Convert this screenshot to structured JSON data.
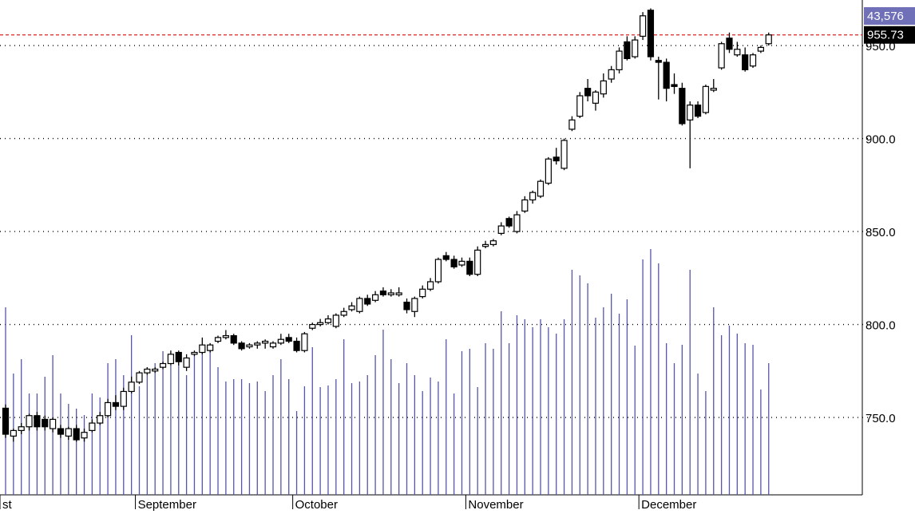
{
  "chart_data": {
    "type": "candlestick",
    "ylim": [
      708.4,
      974.5
    ],
    "yticks": [
      {
        "value": 750,
        "label": "750.0"
      },
      {
        "value": 800,
        "label": "800.0"
      },
      {
        "value": 850,
        "label": "850.0"
      },
      {
        "value": 900,
        "label": "900.0"
      },
      {
        "value": 950,
        "label": "950.0"
      }
    ],
    "grid": true,
    "xlim": [
      -0.71,
      108.9
    ],
    "xticks": [
      {
        "value": -0.71,
        "label": "st"
      },
      {
        "value": 16.5,
        "label": "September"
      },
      {
        "value": 36.5,
        "label": "October"
      },
      {
        "value": 58.5,
        "label": "November"
      },
      {
        "value": 80.5,
        "label": "December"
      }
    ],
    "y2lim": [
      0,
      163700
    ],
    "y2ticks": [
      {
        "value": 43576,
        "label": "43,576"
      }
    ],
    "reference_line": 955.73,
    "reference_color": "#e02020",
    "candle_color": "#000000",
    "volume_color": "#5555aa",
    "open": [
      755,
      740,
      743,
      745,
      751,
      749,
      744,
      744,
      740,
      744,
      739,
      743,
      747,
      751,
      758,
      756,
      764,
      769,
      774,
      775,
      777,
      779,
      785,
      777,
      784,
      785,
      786,
      791,
      793,
      794,
      790,
      788,
      789,
      790,
      788,
      790,
      793,
      791,
      786,
      798,
      800,
      801,
      799,
      805,
      808,
      807,
      814,
      813,
      818,
      816,
      816,
      812,
      807,
      815,
      819,
      823,
      837,
      835,
      832,
      834,
      827,
      842,
      843,
      849,
      857,
      850,
      861,
      867,
      869,
      876,
      890,
      884,
      905,
      912,
      927,
      919,
      924,
      932,
      937,
      952,
      944,
      955,
      969,
      942,
      941,
      929,
      927,
      910,
      918,
      914,
      926,
      938,
      954,
      945,
      945,
      939,
      947,
      951
    ],
    "high": [
      757,
      744,
      747,
      752,
      753,
      751,
      750,
      746,
      745,
      746,
      744,
      749,
      753,
      760,
      762,
      766,
      772,
      775,
      777,
      777,
      780,
      786,
      786,
      784,
      786,
      793,
      790,
      794,
      797,
      795,
      791,
      790,
      791,
      792,
      791,
      795,
      795,
      793,
      796,
      801,
      803,
      805,
      806,
      809,
      812,
      815,
      816,
      818,
      820,
      819,
      820,
      814,
      815,
      821,
      825,
      836,
      839,
      837,
      836,
      836,
      842,
      845,
      846,
      855,
      858,
      861,
      869,
      872,
      878,
      890,
      895,
      900,
      912,
      925,
      932,
      926,
      935,
      939,
      949,
      955,
      955,
      968,
      970,
      944,
      943,
      935,
      930,
      920,
      920,
      929,
      932,
      952,
      957,
      952,
      949,
      946,
      950,
      957
    ],
    "low": [
      739,
      737,
      741,
      743,
      743,
      743,
      742,
      739,
      738,
      737,
      737,
      742,
      746,
      750,
      754,
      754,
      763,
      768,
      773,
      774,
      776,
      778,
      778,
      775,
      783,
      784,
      785,
      790,
      792,
      789,
      786,
      787,
      787,
      787,
      787,
      789,
      790,
      785,
      785,
      797,
      799,
      800,
      798,
      804,
      807,
      806,
      810,
      812,
      815,
      815,
      815,
      806,
      804,
      814,
      818,
      822,
      834,
      830,
      831,
      826,
      826,
      841,
      842,
      848,
      852,
      849,
      860,
      865,
      868,
      875,
      886,
      883,
      904,
      911,
      920,
      915,
      922,
      930,
      935,
      942,
      943,
      953,
      942,
      921,
      920,
      924,
      907,
      884,
      911,
      913,
      925,
      937,
      946,
      944,
      936,
      938,
      946,
      950
    ],
    "close": [
      741,
      743,
      745,
      751,
      745,
      745,
      749,
      741,
      744,
      738,
      742,
      747,
      751,
      758,
      756,
      764,
      769,
      774,
      776,
      776,
      779,
      784,
      780,
      782,
      785,
      789,
      789,
      793,
      794,
      790,
      787,
      789,
      790,
      791,
      790,
      792,
      791,
      786,
      795,
      800,
      801,
      803,
      805,
      807,
      810,
      814,
      811,
      816,
      816,
      817,
      817,
      808,
      814,
      819,
      823,
      835,
      835,
      831,
      834,
      827,
      840,
      843,
      845,
      853,
      853,
      859,
      867,
      871,
      877,
      889,
      888,
      899,
      910,
      923,
      923,
      925,
      931,
      937,
      947,
      943,
      953,
      966,
      944,
      941,
      927,
      928,
      908,
      918,
      912,
      928,
      927,
      951,
      948,
      948,
      937,
      945,
      949,
      955.73
    ],
    "volume": [
      62040,
      40128,
      44880,
      33528,
      33528,
      39072,
      46200,
      33528,
      30096,
      28512,
      26400,
      33528,
      32208,
      43560,
      44880,
      39600,
      52800,
      35904,
      42240,
      43560,
      47520,
      42768,
      45408,
      39600,
      46200,
      47520,
      49632,
      42240,
      37488,
      38280,
      38280,
      36960,
      37488,
      34320,
      39600,
      44880,
      38280,
      27720,
      35904,
      48840,
      35640,
      36168,
      38280,
      51480,
      36960,
      37488,
      39600,
      46200,
      54648,
      44880,
      36960,
      43560,
      39600,
      34320,
      38808,
      37488,
      51480,
      33528,
      47520,
      48312,
      35640,
      50160,
      48312,
      60720,
      50160,
      59400,
      58080,
      55440,
      58080,
      55440,
      53328,
      58080,
      74448,
      72600,
      69960,
      58608,
      62040,
      66528,
      59928,
      64680,
      49368,
      77880,
      81312,
      76560,
      50160,
      43560,
      49632,
      74448,
      40128,
      34320,
      62040,
      52800,
      55968,
      53328,
      50160,
      49632,
      34848,
      43576
    ]
  }
}
